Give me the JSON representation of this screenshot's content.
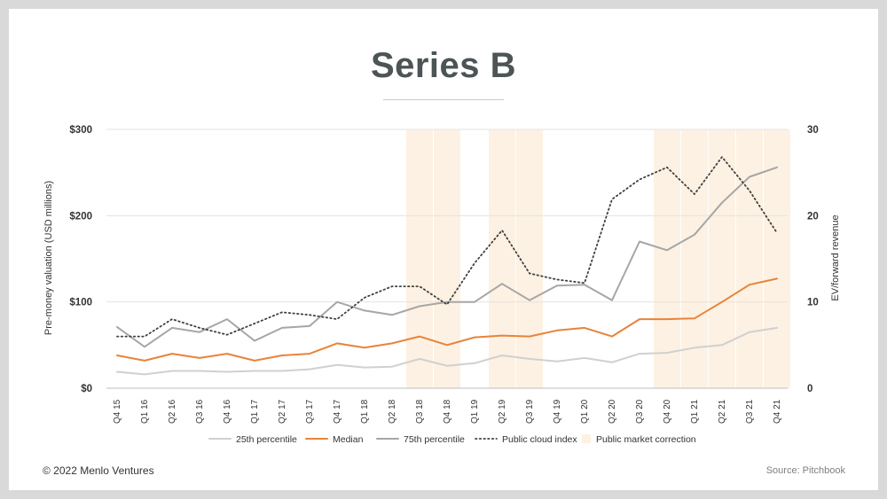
{
  "slide": {
    "title": "Series B",
    "copyright": "© 2022 Menlo Ventures",
    "source": "Source: Pitchbook"
  },
  "chart_data": {
    "type": "line",
    "title": "Series B",
    "ylabel": "Pre-money valuation (USD millions)",
    "y2label": "EV/forward revenue",
    "ylim": [
      0,
      300
    ],
    "y2lim": [
      0,
      30
    ],
    "yticks": [
      "$0",
      "$100",
      "$200",
      "$300"
    ],
    "y2ticks": [
      "0",
      "10",
      "20",
      "30"
    ],
    "grid": true,
    "legend_position": "bottom",
    "categories": [
      "Q4 15",
      "Q1 16",
      "Q2 16",
      "Q3 16",
      "Q4 16",
      "Q1 17",
      "Q2 17",
      "Q3 17",
      "Q4 17",
      "Q1 18",
      "Q2 18",
      "Q3 18",
      "Q4 18",
      "Q1 19",
      "Q2 19",
      "Q3 19",
      "Q4 19",
      "Q1 20",
      "Q2 20",
      "Q3 20",
      "Q4 20",
      "Q1 21",
      "Q2 21",
      "Q3 21",
      "Q4 21"
    ],
    "series": [
      {
        "name": "25th percentile",
        "axis": "left",
        "color": "#d0d0d0",
        "style": "solid",
        "values": [
          19,
          16,
          20,
          20,
          19,
          20,
          20,
          22,
          27,
          24,
          25,
          34,
          26,
          29,
          38,
          34,
          31,
          35,
          30,
          40,
          41,
          47,
          50,
          65,
          70
        ]
      },
      {
        "name": "Median",
        "axis": "left",
        "color": "#e8833a",
        "style": "solid",
        "values": [
          38,
          32,
          40,
          35,
          40,
          32,
          38,
          40,
          52,
          47,
          52,
          60,
          50,
          59,
          61,
          60,
          67,
          70,
          60,
          80,
          80,
          81,
          100,
          120,
          127
        ]
      },
      {
        "name": "75th percentile",
        "axis": "left",
        "color": "#a6a6a6",
        "style": "solid",
        "values": [
          71,
          48,
          70,
          65,
          80,
          55,
          70,
          72,
          100,
          90,
          85,
          95,
          100,
          100,
          121,
          102,
          119,
          120,
          102,
          170,
          160,
          178,
          215,
          245,
          256
        ]
      },
      {
        "name": "Public cloud index",
        "axis": "right",
        "color": "#404040",
        "style": "dotted",
        "values": [
          6.0,
          6.0,
          8.0,
          7.0,
          6.2,
          7.5,
          8.8,
          8.5,
          8.0,
          10.5,
          11.8,
          11.8,
          9.7,
          14.5,
          18.3,
          13.3,
          12.6,
          12.2,
          21.9,
          24.2,
          25.6,
          22.5,
          26.8,
          22.9,
          18.0
        ]
      },
      {
        "name": "Public market correction",
        "type": "band",
        "color": "#fdf1e3",
        "categories": [
          "Q3 18",
          "Q4 18",
          "Q2 19",
          "Q3 19",
          "Q4 20",
          "Q1 21",
          "Q2 21",
          "Q3 21",
          "Q4 21"
        ]
      }
    ]
  }
}
